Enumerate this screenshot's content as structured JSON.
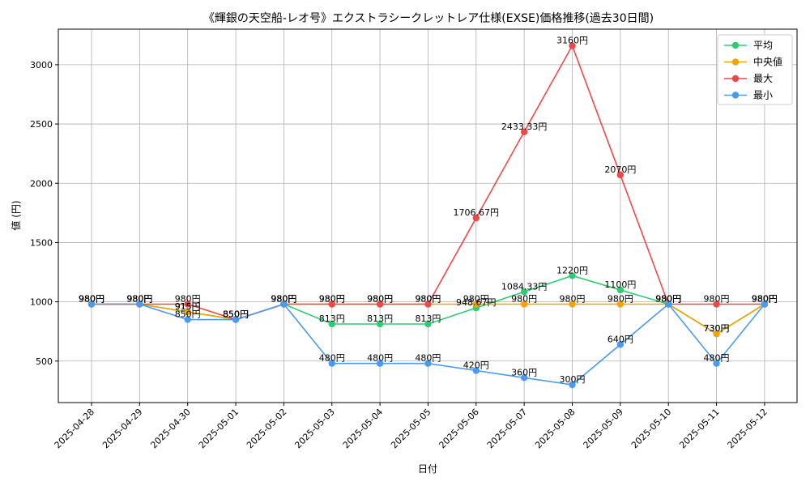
{
  "chart_data": {
    "type": "line",
    "title": "《輝銀の天空船-レオ号》エクストラシークレットレア仕様(EXSE)価格推移(過去30日間)",
    "xlabel": "日付",
    "ylabel": "値 (円)",
    "ylim": [
      150,
      3300
    ],
    "yticks": [
      500,
      1000,
      1500,
      2000,
      2500,
      3000
    ],
    "grid": true,
    "legend_position": "top-right",
    "value_suffix": "円",
    "x": [
      "2025-04-28",
      "2025-04-29",
      "2025-04-30",
      "2025-05-01",
      "2025-05-02",
      "2025-05-03",
      "2025-05-04",
      "2025-05-05",
      "2025-05-06",
      "2025-05-07",
      "2025-05-08",
      "2025-05-09",
      "2025-05-10",
      "2025-05-11",
      "2025-05-12"
    ],
    "series": [
      {
        "name": "平均",
        "color": "#2ecc71",
        "values": [
          980,
          980,
          915,
          850,
          980,
          813,
          813,
          813,
          948.67,
          1084.33,
          1220,
          1100,
          980,
          730,
          980
        ]
      },
      {
        "name": "中央値",
        "color": "#f5a300",
        "values": [
          980,
          980,
          915,
          850,
          980,
          980,
          980,
          980,
          980,
          980,
          980,
          980,
          980,
          730,
          980
        ]
      },
      {
        "name": "最大",
        "color": "#f04848",
        "values": [
          980,
          980,
          980,
          850,
          980,
          980,
          980,
          980,
          1706.67,
          2433.33,
          3160,
          2070,
          980,
          980,
          980
        ]
      },
      {
        "name": "最小",
        "color": "#4a9af0",
        "values": [
          980,
          980,
          850,
          850,
          980,
          480,
          480,
          480,
          420,
          360,
          300,
          640,
          980,
          480,
          980
        ]
      }
    ]
  }
}
